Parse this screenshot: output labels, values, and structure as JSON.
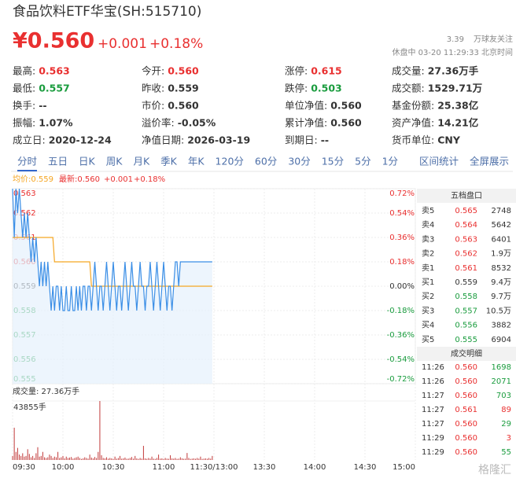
{
  "header": {
    "title": "食品饮料ETF华宝(SH:515710)",
    "price": "¥0.560",
    "change": "+0.001",
    "change_pct": "+0.18%",
    "followers": "3.39",
    "followers_label": "万球友关注",
    "status": "休盘中 03-20 11:29:33 北京时间"
  },
  "stats": [
    [
      {
        "label": "最高:",
        "value": "0.563",
        "color": "#e93030"
      },
      {
        "label": "今开:",
        "value": "0.560",
        "color": "#e93030"
      },
      {
        "label": "涨停:",
        "value": "0.615",
        "color": "#e93030"
      },
      {
        "label": "成交量:",
        "value": "27.36万手"
      }
    ],
    [
      {
        "label": "最低:",
        "value": "0.557",
        "color": "#1a9c3e"
      },
      {
        "label": "昨收:",
        "value": "0.559"
      },
      {
        "label": "跌停:",
        "value": "0.503",
        "color": "#1a9c3e"
      },
      {
        "label": "成交额:",
        "value": "1529.71万"
      }
    ],
    [
      {
        "label": "换手:",
        "value": "--"
      },
      {
        "label": "市价:",
        "value": "0.560"
      },
      {
        "label": "单位净值:",
        "value": "0.560"
      },
      {
        "label": "基金份额:",
        "value": "25.38亿"
      }
    ],
    [
      {
        "label": "振幅:",
        "value": "1.07%"
      },
      {
        "label": "溢价率:",
        "value": "-0.05%"
      },
      {
        "label": "累计净值:",
        "value": "0.560"
      },
      {
        "label": "资产净值:",
        "value": "14.21亿"
      }
    ],
    [
      {
        "label": "成立日:",
        "value": "2020-12-24"
      },
      {
        "label": "净值日期:",
        "value": "2026-03-19"
      },
      {
        "label": "到期日:",
        "value": "--"
      },
      {
        "label": "货币单位:",
        "value": "CNY"
      }
    ]
  ],
  "tabs": [
    "分时",
    "五日",
    "日K",
    "周K",
    "月K",
    "季K",
    "年K",
    "120分",
    "60分",
    "30分",
    "15分",
    "5分",
    "1分"
  ],
  "tools": [
    "区间统计",
    "全屏展示"
  ],
  "chart_data": {
    "type": "line",
    "avg_label": "均价:0.559",
    "latest_label": "最新:0.560",
    "latest_change": "+0.001",
    "latest_change_pct": "+0.18%",
    "xlim": [
      0,
      240
    ],
    "xticks": [
      {
        "value": 0,
        "label": "09:30"
      },
      {
        "value": 30,
        "label": "10:00"
      },
      {
        "value": 60,
        "label": "10:30"
      },
      {
        "value": 90,
        "label": "11:00"
      },
      {
        "value": 120,
        "label": "11:30/13:00"
      },
      {
        "value": 150,
        "label": "13:30"
      },
      {
        "value": 180,
        "label": "14:00"
      },
      {
        "value": 210,
        "label": "14:30"
      },
      {
        "value": 240,
        "label": "15:00"
      }
    ],
    "ylim": [
      0.555,
      0.563
    ],
    "yticks": [
      0.563,
      0.562,
      0.561,
      {
        "value": 0.56,
        "label": "0.560"
      },
      0.559,
      0.558,
      0.557,
      0.556,
      0.555
    ],
    "y2lim": [
      -0.72,
      0.72
    ],
    "y2ticks": [
      {
        "value": 0.72,
        "label": "0.72%"
      },
      {
        "value": 0.54,
        "label": "0.54%"
      },
      {
        "value": 0.36,
        "label": "0.36%"
      },
      {
        "value": 0.18,
        "label": "0.18%"
      },
      {
        "value": 0,
        "label": "0.00%"
      },
      {
        "value": -0.18,
        "label": "-0.18%"
      },
      {
        "value": -0.36,
        "label": "-0.36%"
      },
      {
        "value": -0.54,
        "label": "-0.54%"
      },
      {
        "value": -0.72,
        "label": "-0.72%"
      }
    ],
    "grid": true,
    "series": [
      {
        "color": "#3a8ee6",
        "values": [
          0.563,
          0.561,
          0.563,
          0.562,
          0.563,
          0.562,
          0.561,
          0.562,
          0.561,
          0.562,
          0.561,
          0.56,
          0.561,
          0.56,
          0.561,
          0.56,
          0.559,
          0.56,
          0.559,
          0.56,
          0.559,
          0.56,
          0.559,
          0.558,
          0.559,
          0.558,
          0.559,
          0.559,
          0.558,
          0.559,
          0.558,
          0.558,
          0.559,
          0.558,
          0.558,
          0.559,
          0.558,
          0.558,
          0.559,
          0.558,
          0.559,
          0.558,
          0.559,
          0.559,
          0.558,
          0.559,
          0.559,
          0.558,
          0.559,
          0.56,
          0.559,
          0.558,
          0.559,
          0.559,
          0.558,
          0.559,
          0.56,
          0.559,
          0.558,
          0.559,
          0.56,
          0.559,
          0.558,
          0.559,
          0.559,
          0.558,
          0.559,
          0.56,
          0.559,
          0.558,
          0.559,
          0.56,
          0.559,
          0.559,
          0.558,
          0.559,
          0.56,
          0.559,
          0.559,
          0.558,
          0.559,
          0.559,
          0.56,
          0.559,
          0.558,
          0.559,
          0.56,
          0.559,
          0.558,
          0.559,
          0.56,
          0.559,
          0.558,
          0.559,
          0.559,
          0.558,
          0.559,
          0.56,
          0.56,
          0.559,
          0.56,
          0.56,
          0.56,
          0.56,
          0.56,
          0.56,
          0.56,
          0.56,
          0.56,
          0.56,
          0.56,
          0.56,
          0.56,
          0.56,
          0.56,
          0.56,
          0.56,
          0.56,
          0.56,
          0.56
        ]
      },
      {
        "color": "#f5a623",
        "values": [
          0.561,
          0.561,
          0.561,
          0.561,
          0.561,
          0.561,
          0.561,
          0.561,
          0.561,
          0.561,
          0.561,
          0.561,
          0.561,
          0.561,
          0.561,
          0.561,
          0.561,
          0.561,
          0.561,
          0.561,
          0.561,
          0.561,
          0.561,
          0.561,
          0.561,
          0.56,
          0.56,
          0.56,
          0.56,
          0.56,
          0.56,
          0.56,
          0.56,
          0.56,
          0.56,
          0.56,
          0.56,
          0.56,
          0.56,
          0.56,
          0.56,
          0.56,
          0.56,
          0.56,
          0.56,
          0.56,
          0.56,
          0.559,
          0.559,
          0.559,
          0.559,
          0.559,
          0.559,
          0.559,
          0.559,
          0.559,
          0.559,
          0.559,
          0.559,
          0.559,
          0.559,
          0.559,
          0.559,
          0.559,
          0.559,
          0.559,
          0.559,
          0.559,
          0.559,
          0.559,
          0.559,
          0.559,
          0.559,
          0.559,
          0.559,
          0.559,
          0.559,
          0.559,
          0.559,
          0.559,
          0.559,
          0.559,
          0.559,
          0.559,
          0.559,
          0.559,
          0.559,
          0.559,
          0.559,
          0.559,
          0.559,
          0.559,
          0.559,
          0.559,
          0.559,
          0.559,
          0.559,
          0.559,
          0.559,
          0.559,
          0.559,
          0.559,
          0.559,
          0.559,
          0.559,
          0.559,
          0.559,
          0.559,
          0.559,
          0.559,
          0.559,
          0.559,
          0.559,
          0.559,
          0.559,
          0.559,
          0.559,
          0.559,
          0.559,
          0.559
        ]
      }
    ],
    "volume": {
      "title": "成交量: 27.36万手",
      "color": "#c23a3a",
      "ylim": [
        0,
        43855
      ],
      "yticks": [
        {
          "value": 43855,
          "label": "43855手"
        }
      ],
      "values": [
        3000,
        24000,
        6000,
        9000,
        4000,
        3000,
        5000,
        2500,
        3000,
        8000,
        4500,
        2000,
        3000,
        1500,
        5000,
        9500,
        2500,
        3000,
        6000,
        2000,
        1500,
        2000,
        4000,
        3000,
        1500,
        2500,
        2000,
        6000,
        1500,
        2000,
        3000,
        1200,
        2500,
        1500,
        1800,
        2200,
        1000,
        1500,
        2000,
        2500,
        1500,
        800,
        1200,
        2000,
        1500,
        1000,
        4000,
        1800,
        1200,
        2200,
        1500,
        6000,
        43855,
        3500,
        1500,
        1200,
        2000,
        1000,
        1500,
        1200,
        800,
        2500,
        1000,
        1500,
        3000,
        1000,
        1200,
        1800,
        900,
        1000,
        1500,
        2200,
        1000,
        3000,
        1200,
        800,
        1500,
        1000,
        10500,
        1200,
        900,
        1500,
        1000,
        2500,
        1000,
        800,
        1500,
        4000,
        1000,
        1200,
        800,
        1500,
        1000,
        900,
        3500,
        1200,
        1000,
        1500,
        800,
        1000,
        2000,
        1200,
        900,
        1000,
        5200,
        1500,
        800,
        1000,
        1200,
        900,
        1500,
        1000,
        2500,
        800,
        1000,
        1200,
        900,
        1500,
        1000,
        3000
      ]
    }
  },
  "order_book": {
    "title": "五档盘口",
    "rows": [
      {
        "label": "卖5",
        "price": "0.565",
        "volume": "2748",
        "color": "#e93030"
      },
      {
        "label": "卖4",
        "price": "0.564",
        "volume": "5642",
        "color": "#e93030"
      },
      {
        "label": "卖3",
        "price": "0.563",
        "volume": "6401",
        "color": "#e93030"
      },
      {
        "label": "卖2",
        "price": "0.562",
        "volume": "1.9万",
        "color": "#e93030"
      },
      {
        "label": "卖1",
        "price": "0.561",
        "volume": "8532",
        "color": "#e93030"
      },
      {
        "label": "买1",
        "price": "0.559",
        "volume": "9.4万",
        "color": "#333333"
      },
      {
        "label": "买2",
        "price": "0.558",
        "volume": "9.7万",
        "color": "#1a9c3e"
      },
      {
        "label": "买3",
        "price": "0.557",
        "volume": "10.5万",
        "color": "#1a9c3e"
      },
      {
        "label": "买4",
        "price": "0.556",
        "volume": "3882",
        "color": "#1a9c3e"
      },
      {
        "label": "买5",
        "price": "0.555",
        "volume": "6904",
        "color": "#1a9c3e"
      }
    ]
  },
  "trades": {
    "title": "成交明细",
    "rows": [
      {
        "time": "11:26",
        "price": "0.560",
        "volume": "1698",
        "color": "#e93030",
        "volume_color": "#1a9c3e"
      },
      {
        "time": "11:26",
        "price": "0.560",
        "volume": "2071",
        "color": "#e93030",
        "volume_color": "#1a9c3e"
      },
      {
        "time": "11:27",
        "price": "0.560",
        "volume": "703",
        "color": "#e93030",
        "volume_color": "#1a9c3e"
      },
      {
        "time": "11:27",
        "price": "0.561",
        "volume": "89",
        "color": "#e93030",
        "volume_color": "#e93030"
      },
      {
        "time": "11:27",
        "price": "0.560",
        "volume": "29",
        "color": "#e93030",
        "volume_color": "#1a9c3e"
      },
      {
        "time": "11:29",
        "price": "0.560",
        "volume": "3",
        "color": "#e93030",
        "volume_color": "#e93030"
      },
      {
        "time": "11:29",
        "price": "0.560",
        "volume": "55",
        "color": "#e93030",
        "volume_color": "#1a9c3e"
      }
    ]
  },
  "watermark": "格隆汇"
}
